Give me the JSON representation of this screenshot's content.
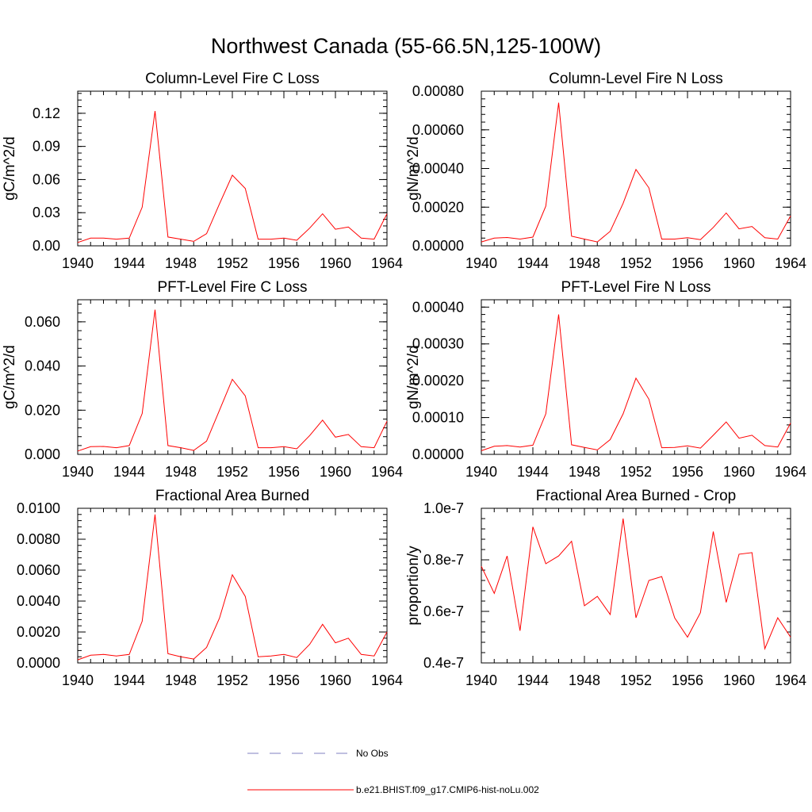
{
  "main_title": "Northwest Canada (55-66.5N,125-100W)",
  "colors": {
    "series": "#ff0000",
    "obs": "#8080c0",
    "axis": "#000000"
  },
  "chart_data": [
    {
      "type": "line",
      "title": "Column-Level Fire C Loss",
      "ylabel": "gC/m^2/d",
      "xlim": [
        1940,
        1964
      ],
      "x_ticks": [
        "1940",
        "1944",
        "1948",
        "1952",
        "1956",
        "1960",
        "1964"
      ],
      "ylim": [
        0,
        0.14
      ],
      "y_ticks": [
        {
          "v": 0,
          "label": "0.00"
        },
        {
          "v": 0.03,
          "label": "0.03"
        },
        {
          "v": 0.06,
          "label": "0.06"
        },
        {
          "v": 0.09,
          "label": "0.09"
        },
        {
          "v": 0.12,
          "label": "0.12"
        }
      ],
      "x": [
        1940,
        1941,
        1942,
        1943,
        1944,
        1945,
        1946,
        1947,
        1948,
        1949,
        1950,
        1951,
        1952,
        1953,
        1954,
        1955,
        1956,
        1957,
        1958,
        1959,
        1960,
        1961,
        1962,
        1963,
        1964
      ],
      "values": [
        0.003,
        0.007,
        0.007,
        0.006,
        0.007,
        0.035,
        0.122,
        0.008,
        0.006,
        0.004,
        0.011,
        0.038,
        0.064,
        0.052,
        0.006,
        0.006,
        0.007,
        0.005,
        0.016,
        0.029,
        0.015,
        0.017,
        0.007,
        0.006,
        0.029
      ]
    },
    {
      "type": "line",
      "title": "Column-Level Fire N Loss",
      "ylabel": "gN/m^2/d",
      "xlim": [
        1940,
        1964
      ],
      "x_ticks": [
        "1940",
        "1944",
        "1948",
        "1952",
        "1956",
        "1960",
        "1964"
      ],
      "ylim": [
        0,
        0.0008
      ],
      "y_ticks": [
        {
          "v": 0,
          "label": "0.00000"
        },
        {
          "v": 0.0002,
          "label": "0.00020"
        },
        {
          "v": 0.0004,
          "label": "0.00040"
        },
        {
          "v": 0.0006,
          "label": "0.00060"
        },
        {
          "v": 0.0008,
          "label": "0.00080"
        }
      ],
      "x": [
        1940,
        1941,
        1942,
        1943,
        1944,
        1945,
        1946,
        1947,
        1948,
        1949,
        1950,
        1951,
        1952,
        1953,
        1954,
        1955,
        1956,
        1957,
        1958,
        1959,
        1960,
        1961,
        1962,
        1963,
        1964
      ],
      "values": [
        2e-05,
        4e-05,
        4.3e-05,
        3.5e-05,
        4.5e-05,
        0.000205,
        0.00074,
        5e-05,
        3.5e-05,
        2e-05,
        7.5e-05,
        0.00022,
        0.000395,
        0.0003,
        3.5e-05,
        3.5e-05,
        4.2e-05,
        3.2e-05,
        9.5e-05,
        0.00017,
        8.8e-05,
        0.0001,
        4.2e-05,
        3.5e-05,
        0.000155
      ]
    },
    {
      "type": "line",
      "title": "PFT-Level Fire C Loss",
      "ylabel": "gC/m^2/d",
      "xlim": [
        1940,
        1964
      ],
      "x_ticks": [
        "1940",
        "1944",
        "1948",
        "1952",
        "1956",
        "1960",
        "1964"
      ],
      "ylim": [
        0,
        0.07
      ],
      "y_ticks": [
        {
          "v": 0,
          "label": "0.000"
        },
        {
          "v": 0.02,
          "label": "0.020"
        },
        {
          "v": 0.04,
          "label": "0.040"
        },
        {
          "v": 0.06,
          "label": "0.060"
        }
      ],
      "x": [
        1940,
        1941,
        1942,
        1943,
        1944,
        1945,
        1946,
        1947,
        1948,
        1949,
        1950,
        1951,
        1952,
        1953,
        1954,
        1955,
        1956,
        1957,
        1958,
        1959,
        1960,
        1961,
        1962,
        1963,
        1964
      ],
      "values": [
        0.0015,
        0.0035,
        0.0036,
        0.003,
        0.004,
        0.0185,
        0.0655,
        0.004,
        0.003,
        0.0018,
        0.006,
        0.02,
        0.034,
        0.0265,
        0.003,
        0.003,
        0.0035,
        0.0025,
        0.0085,
        0.0155,
        0.0078,
        0.009,
        0.0035,
        0.003,
        0.015
      ]
    },
    {
      "type": "line",
      "title": "PFT-Level Fire N Loss",
      "ylabel": "gN/m^2/d",
      "xlim": [
        1940,
        1964
      ],
      "x_ticks": [
        "1940",
        "1944",
        "1948",
        "1952",
        "1956",
        "1960",
        "1964"
      ],
      "ylim": [
        0,
        0.00042
      ],
      "y_ticks": [
        {
          "v": 0,
          "label": "0.00000"
        },
        {
          "v": 0.0001,
          "label": "0.00010"
        },
        {
          "v": 0.0002,
          "label": "0.00020"
        },
        {
          "v": 0.0003,
          "label": "0.00030"
        },
        {
          "v": 0.0004,
          "label": "0.00040"
        }
      ],
      "x": [
        1940,
        1941,
        1942,
        1943,
        1944,
        1945,
        1946,
        1947,
        1948,
        1949,
        1950,
        1951,
        1952,
        1953,
        1954,
        1955,
        1956,
        1957,
        1958,
        1959,
        1960,
        1961,
        1962,
        1963,
        1964
      ],
      "values": [
        1e-05,
        2.2e-05,
        2.4e-05,
        2e-05,
        2.5e-05,
        0.00011,
        0.00038,
        2.6e-05,
        1.9e-05,
        1.2e-05,
        4e-05,
        0.00011,
        0.000207,
        0.00015,
        1.8e-05,
        1.9e-05,
        2.3e-05,
        1.7e-05,
        5.2e-05,
        8.8e-05,
        4.4e-05,
        5.2e-05,
        2.4e-05,
        2e-05,
        8.5e-05
      ]
    },
    {
      "type": "line",
      "title": "Fractional Area Burned",
      "ylabel": "",
      "xlim": [
        1940,
        1964
      ],
      "x_ticks": [
        "1940",
        "1944",
        "1948",
        "1952",
        "1956",
        "1960",
        "1964"
      ],
      "ylim": [
        0,
        0.01
      ],
      "y_ticks": [
        {
          "v": 0,
          "label": "0.0000"
        },
        {
          "v": 0.002,
          "label": "0.0020"
        },
        {
          "v": 0.004,
          "label": "0.0040"
        },
        {
          "v": 0.006,
          "label": "0.0060"
        },
        {
          "v": 0.008,
          "label": "0.0080"
        },
        {
          "v": 0.01,
          "label": "0.0100"
        }
      ],
      "x": [
        1940,
        1941,
        1942,
        1943,
        1944,
        1945,
        1946,
        1947,
        1948,
        1949,
        1950,
        1951,
        1952,
        1953,
        1954,
        1955,
        1956,
        1957,
        1958,
        1959,
        1960,
        1961,
        1962,
        1963,
        1964
      ],
      "values": [
        0.0002,
        0.0005,
        0.00055,
        0.00045,
        0.00055,
        0.0027,
        0.0096,
        0.0006,
        0.0004,
        0.00025,
        0.001,
        0.0029,
        0.0057,
        0.0043,
        0.0004,
        0.00045,
        0.00055,
        0.00035,
        0.0012,
        0.0025,
        0.0013,
        0.0016,
        0.00055,
        0.00045,
        0.002
      ]
    },
    {
      "type": "line",
      "title": "Fractional Area Burned - Crop",
      "ylabel": "proportion/y",
      "xlim": [
        1940,
        1964
      ],
      "x_ticks": [
        "1940",
        "1944",
        "1948",
        "1952",
        "1956",
        "1960",
        "1964"
      ],
      "ylim": [
        4e-08,
        1e-07
      ],
      "y_ticks": [
        {
          "v": 4e-08,
          "label": "0.4e-7"
        },
        {
          "v": 6e-08,
          "label": "0.6e-7"
        },
        {
          "v": 8e-08,
          "label": "0.8e-7"
        },
        {
          "v": 1e-07,
          "label": "1.0e-7"
        }
      ],
      "x": [
        1940,
        1941,
        1942,
        1943,
        1944,
        1945,
        1946,
        1947,
        1948,
        1949,
        1950,
        1951,
        1952,
        1953,
        1954,
        1955,
        1956,
        1957,
        1958,
        1959,
        1960,
        1961,
        1962,
        1963,
        1964
      ],
      "values": [
        7.75e-08,
        6.7e-08,
        8.15e-08,
        5.25e-08,
        9.28e-08,
        7.85e-08,
        8.15e-08,
        8.72e-08,
        6.22e-08,
        6.58e-08,
        5.88e-08,
        9.6e-08,
        5.75e-08,
        7.2e-08,
        7.35e-08,
        5.75e-08,
        5e-08,
        5.95e-08,
        9.1e-08,
        6.35e-08,
        8.22e-08,
        8.28e-08,
        4.55e-08,
        5.75e-08,
        5e-08
      ]
    }
  ],
  "legend": {
    "obs_label": "No Obs",
    "series_label": "b.e21.BHIST.f09_g17.CMIP6-hist-noLu.002"
  }
}
